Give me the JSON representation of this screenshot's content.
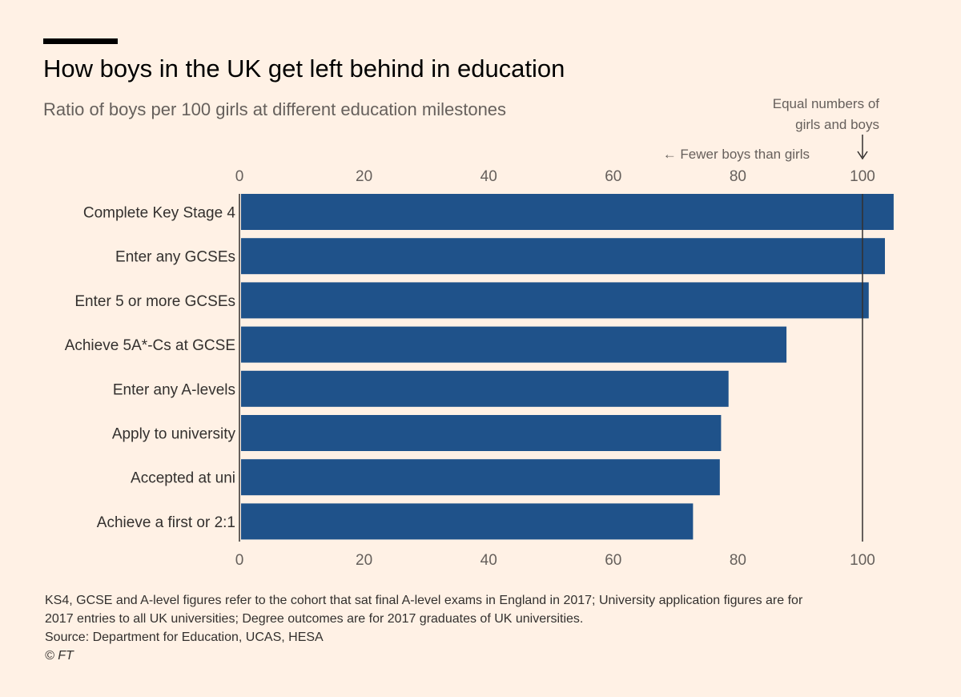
{
  "header": {
    "title": "How boys in the UK get left behind in education",
    "subtitle": "Ratio of boys per 100 girls at different education milestones"
  },
  "annotations": {
    "equal_line1": "Equal numbers of",
    "equal_line2": "girls and boys",
    "fewer": "← Fewer boys than girls"
  },
  "chart_data": {
    "type": "bar",
    "orientation": "horizontal",
    "categories": [
      "Complete Key Stage 4",
      "Enter any GCSEs",
      "Enter 5 or more GCSEs",
      "Achieve 5A*-Cs at GCSE",
      "Enter any A-levels",
      "Apply to university",
      "Accepted at uni",
      "Achieve a first or 2:1"
    ],
    "values": [
      105,
      103.6,
      101,
      87.8,
      78.5,
      77.3,
      77.1,
      72.8
    ],
    "title": "How boys in the UK get left behind in education",
    "subtitle": "Ratio of boys per 100 girls at different education milestones",
    "xlim": [
      0,
      105
    ],
    "xticks": [
      0,
      20,
      40,
      60,
      80,
      100
    ],
    "reference_line": 100,
    "bar_color": "#1f528a",
    "grid": false,
    "axis_labels_top_and_bottom": true
  },
  "footer": {
    "note_line1": "KS4, GCSE and A-level figures refer to the cohort that sat final A-level exams in England in 2017; University application figures are for",
    "note_line2": "2017 entries to all UK universities; Degree outcomes are for 2017 graduates of UK universities.",
    "source": "Source: Department for Education, UCAS, HESA",
    "credit": "© FT"
  },
  "colors": {
    "background": "#fff1e5",
    "bar": "#1f528a",
    "axis_text": "#66605c",
    "reference_line": "#33302e"
  }
}
